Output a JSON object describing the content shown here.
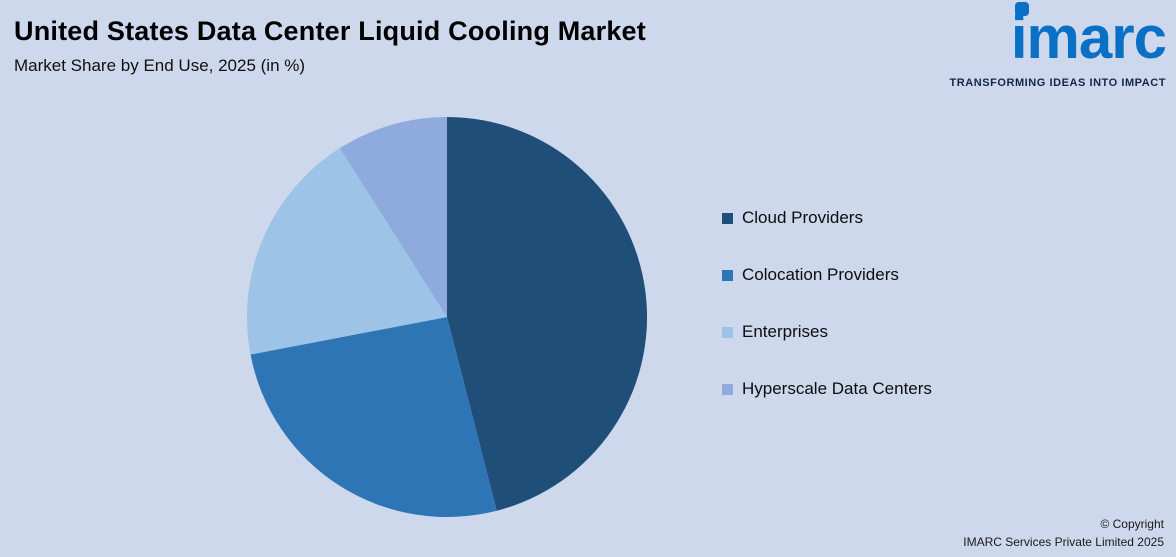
{
  "page": {
    "background": "#cdd8ec"
  },
  "header": {
    "title": "United States Data Center Liquid Cooling Market",
    "subtitle": "Market Share by End Use, 2025 (in %)"
  },
  "logo": {
    "text": "imarc",
    "tagline": "TRANSFORMING IDEAS INTO IMPACT",
    "color": "#0a70c6",
    "tagline_color": "#13264a"
  },
  "chart_data": {
    "type": "pie",
    "title": "Market Share by End Use, 2025 (in %)",
    "categories": [
      "Cloud Providers",
      "Colocation Providers",
      "Enterprises",
      "Hyperscale Data Centers"
    ],
    "values": [
      46,
      26,
      19,
      9
    ],
    "colors": [
      "#1f4e79",
      "#2e75b6",
      "#9dc3e6",
      "#8faadc"
    ],
    "start_angle_deg": 0,
    "direction": "clockwise",
    "legend_position": "right",
    "data_labels": false
  },
  "footer": {
    "copyright_line1": "© Copyright",
    "copyright_line2": "IMARC Services Private Limited 2025"
  }
}
